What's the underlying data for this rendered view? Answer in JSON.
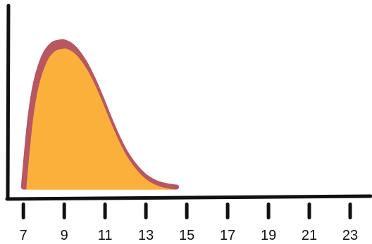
{
  "chart_data": {
    "type": "area",
    "title": "",
    "xlabel": "",
    "ylabel": "",
    "x_ticks": [
      7,
      9,
      11,
      13,
      15,
      17,
      19,
      21,
      23
    ],
    "xlim": [
      6.2,
      24.0
    ],
    "ylim": [
      0,
      1.25
    ],
    "grid": false,
    "legend": "none",
    "series": [
      {
        "x": [
          7.0,
          7.3,
          7.6,
          8.0,
          8.4,
          8.8,
          9.0,
          9.3,
          9.6,
          10.0,
          10.4,
          10.8,
          11.2,
          11.6,
          12.0,
          12.5,
          13.0,
          13.5,
          14.0,
          14.5
        ],
        "y": [
          0.0,
          0.45,
          0.72,
          0.9,
          0.98,
          1.0,
          1.0,
          0.98,
          0.94,
          0.86,
          0.75,
          0.62,
          0.48,
          0.35,
          0.24,
          0.14,
          0.07,
          0.03,
          0.01,
          0.0
        ]
      }
    ],
    "colors": {
      "fill": "#fbb03b",
      "outline": "#b85762",
      "axis": "#111111"
    }
  }
}
